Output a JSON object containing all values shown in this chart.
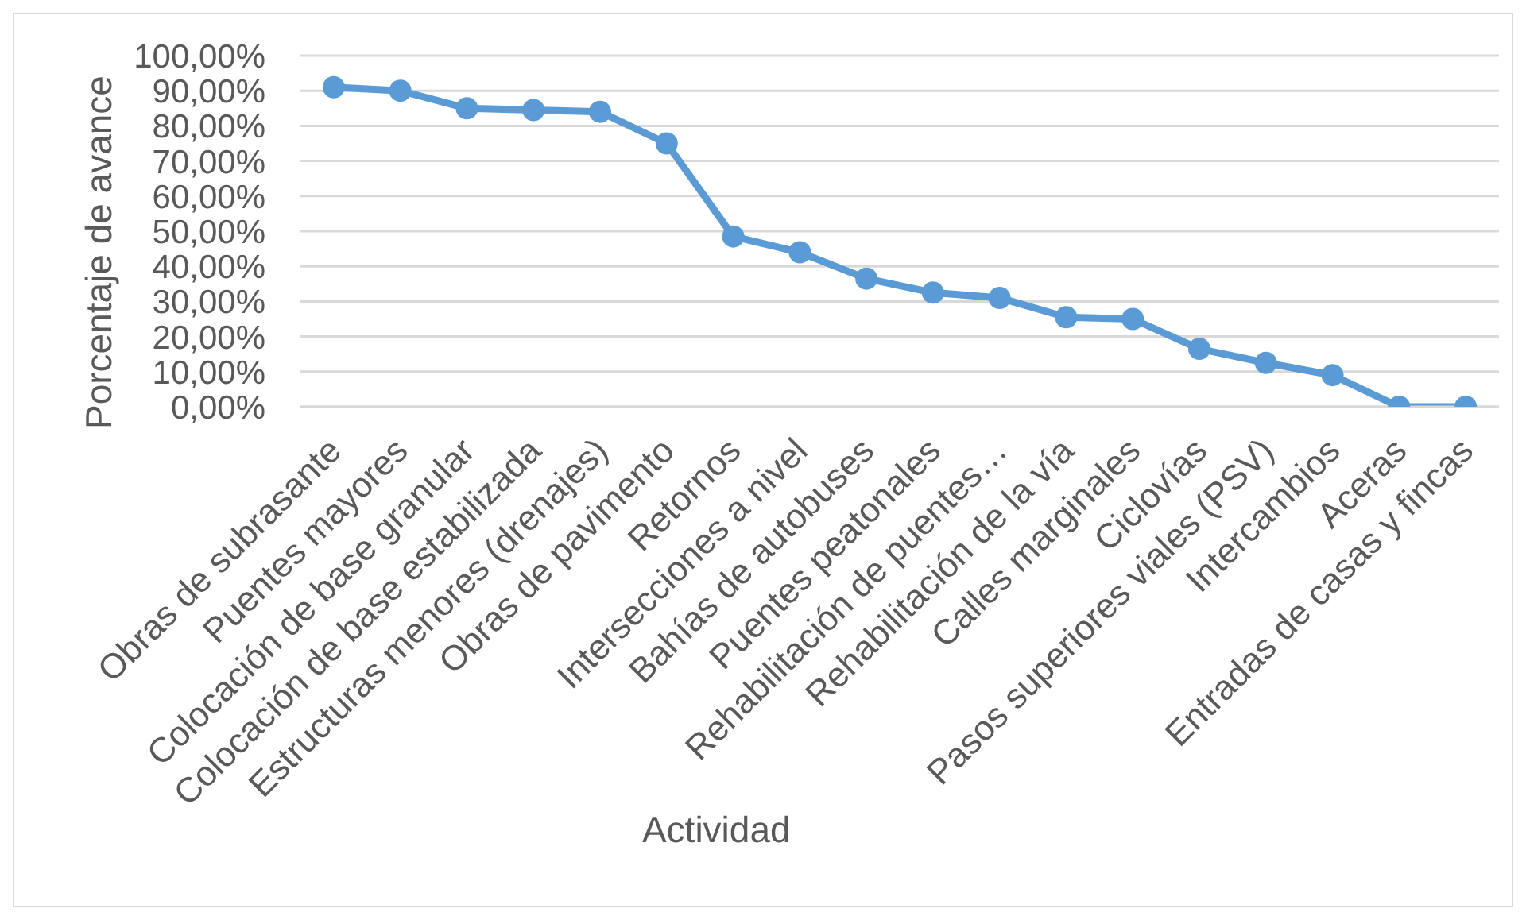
{
  "chart_data": {
    "type": "line",
    "xlabel": "Actividad",
    "ylabel": "Porcentaje de avance",
    "categories": [
      "Obras de subrasante",
      "Puentes mayores",
      "Colocación de base granular",
      "Colocación de base estabilizada",
      "Estructuras menores (drenajes)",
      "Obras de pavimento",
      "Retornos",
      "Intersecciones a nivel",
      "Bahías de autobuses",
      "Puentes peatonales",
      "Rehabilitación de puentes…",
      "Rehabilitación de la vía",
      "Calles marginales",
      "Ciclovías",
      "Pasos superiores viales (PSV)",
      "Intercambios",
      "Aceras",
      "Entradas de casas y fincas"
    ],
    "values": [
      91,
      90,
      85,
      84.5,
      84,
      75,
      48.5,
      44,
      36.5,
      32.5,
      31,
      25.5,
      25,
      16.5,
      12.5,
      9,
      0,
      0
    ],
    "color": "#5b9bd5",
    "ylim": [
      0,
      100
    ],
    "yticks": [
      {
        "value": 0,
        "label": "0,00%"
      },
      {
        "value": 10,
        "label": "10,00%"
      },
      {
        "value": 20,
        "label": "20,00%"
      },
      {
        "value": 30,
        "label": "30,00%"
      },
      {
        "value": 40,
        "label": "40,00%"
      },
      {
        "value": 50,
        "label": "50,00%"
      },
      {
        "value": 60,
        "label": "60,00%"
      },
      {
        "value": 70,
        "label": "70,00%"
      },
      {
        "value": 80,
        "label": "80,00%"
      },
      {
        "value": 90,
        "label": "90,00%"
      },
      {
        "value": 100,
        "label": "100,00%"
      }
    ],
    "grid": "y",
    "marker": "circle",
    "line_style": "solid"
  }
}
